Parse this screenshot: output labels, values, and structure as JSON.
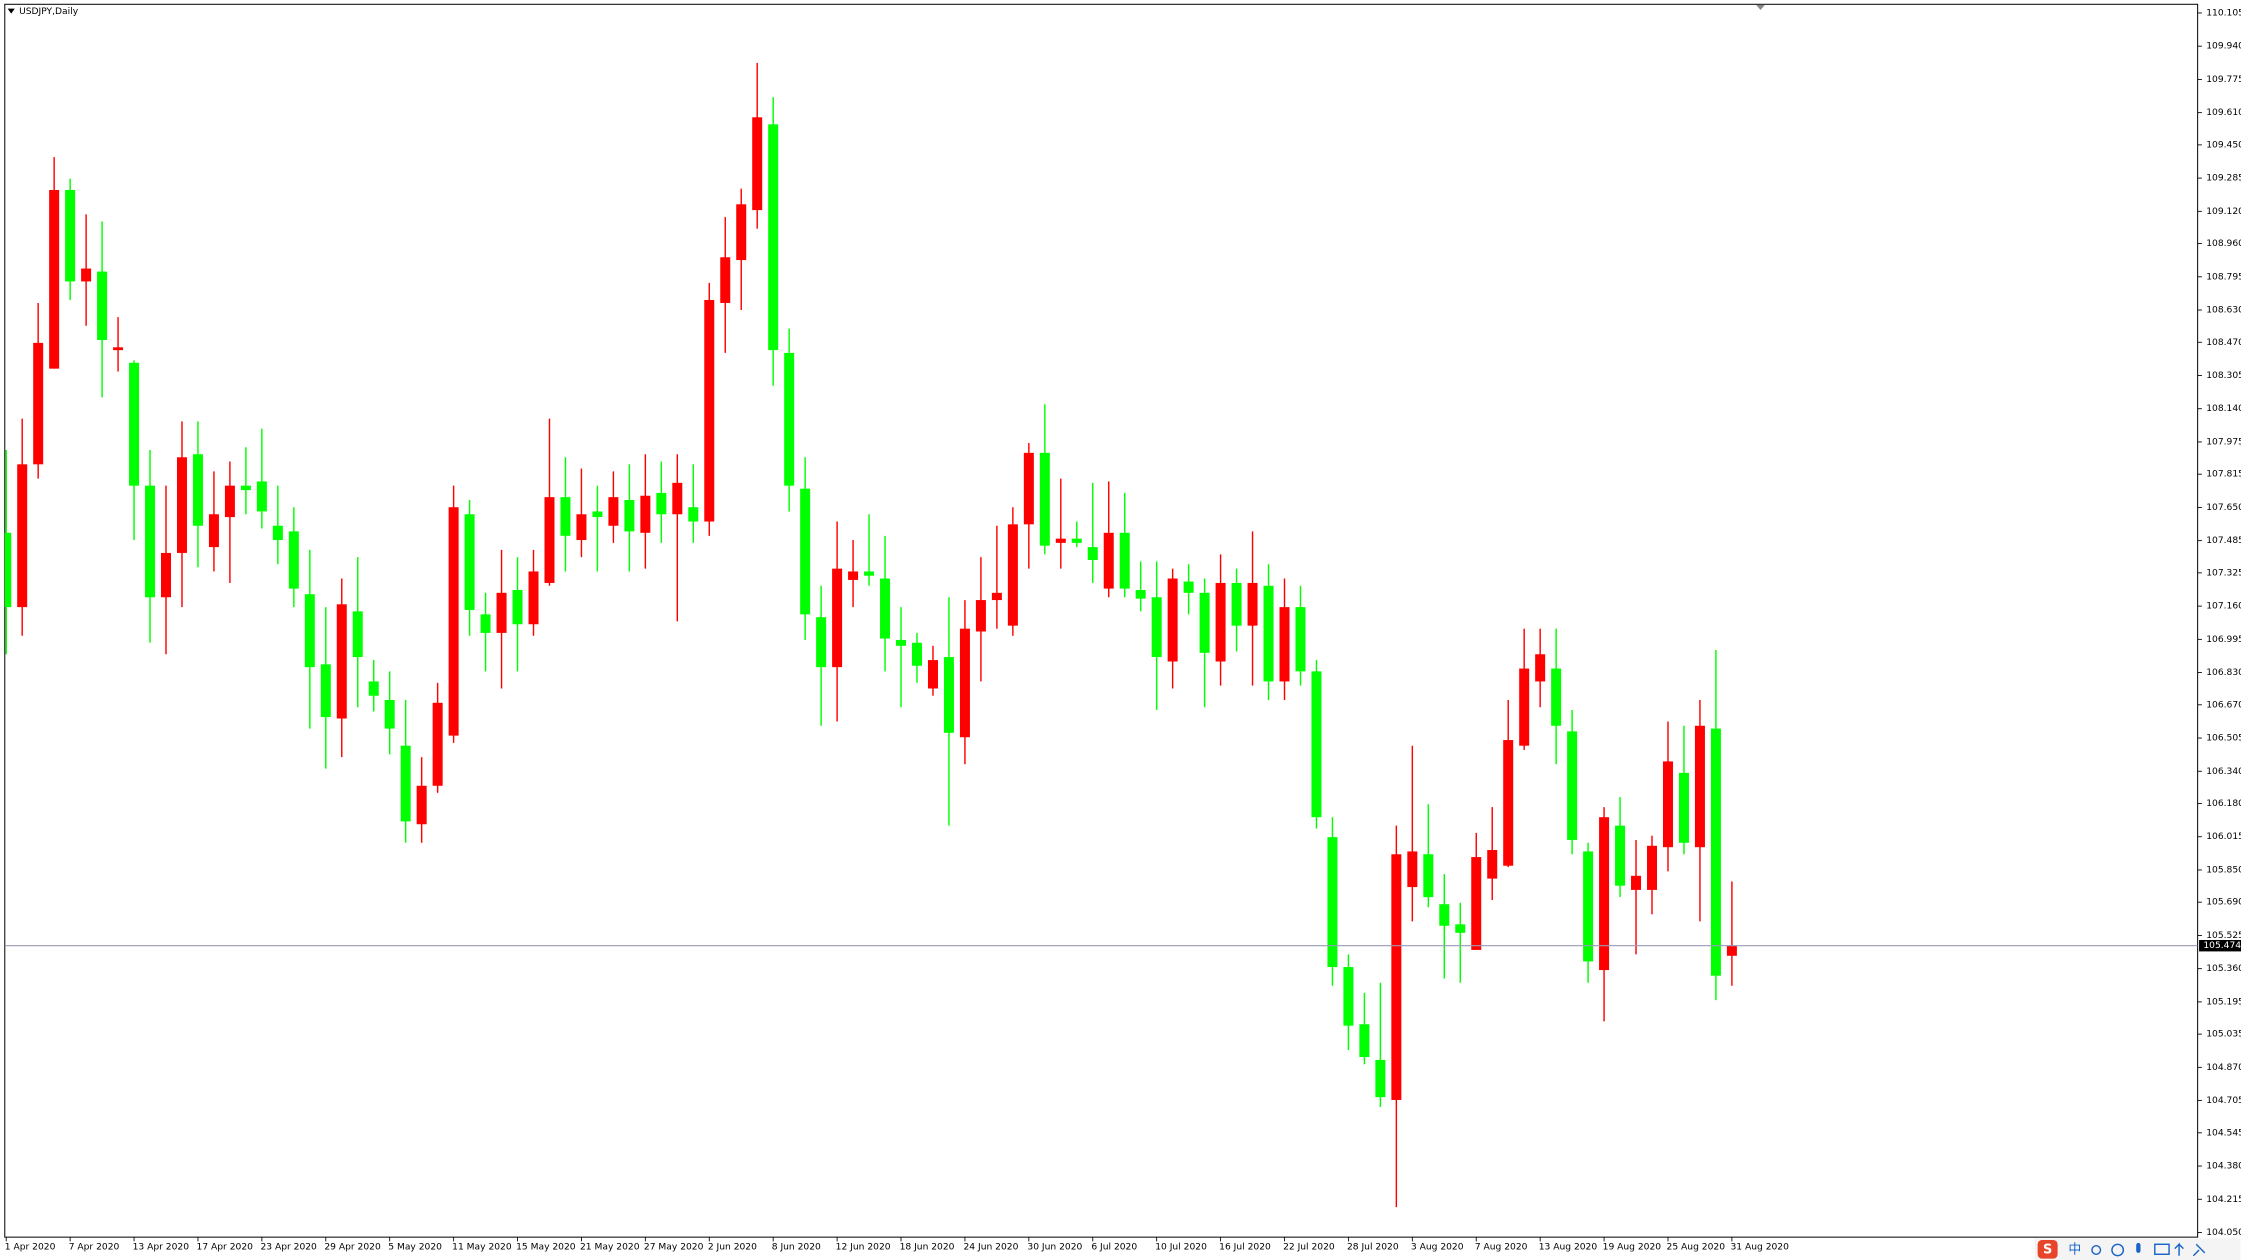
{
  "chart_data": {
    "type": "candlestick",
    "title": "USDJPY,Daily",
    "up_color": "#ff0000",
    "down_color": "#00ff00",
    "grid": false,
    "bid": 105.474,
    "bid_line_color": "#9a9ab8",
    "ylim": [
      104.027,
      110.148
    ],
    "yticks": [
      110.105,
      {
        "value": 109.94,
        "label": "109.940"
      },
      109.775,
      {
        "value": 109.61,
        "label": "109.610"
      },
      {
        "value": 109.45,
        "label": "109.450"
      },
      109.285,
      {
        "value": 109.12,
        "label": "109.120"
      },
      {
        "value": 108.96,
        "label": "108.960"
      },
      108.795,
      {
        "value": 108.63,
        "label": "108.630"
      },
      {
        "value": 108.47,
        "label": "108.470"
      },
      108.305,
      {
        "value": 108.14,
        "label": "108.140"
      },
      107.975,
      107.815,
      {
        "value": 107.65,
        "label": "107.650"
      },
      107.485,
      107.325,
      {
        "value": 107.16,
        "label": "107.160"
      },
      106.995,
      {
        "value": 106.83,
        "label": "106.830"
      },
      {
        "value": 106.67,
        "label": "106.670"
      },
      106.505,
      {
        "value": 106.34,
        "label": "106.340"
      },
      {
        "value": 106.18,
        "label": "106.180"
      },
      106.015,
      {
        "value": 105.85,
        "label": "105.850"
      },
      {
        "value": 105.69,
        "label": "105.690"
      },
      105.525,
      {
        "value": 105.36,
        "label": "105.360"
      },
      105.195,
      105.035,
      {
        "value": 104.87,
        "label": "104.870"
      },
      104.705,
      104.545,
      {
        "value": 104.38,
        "label": "104.380"
      },
      104.215,
      {
        "value": 104.05,
        "label": "104.050"
      }
    ],
    "categories": [
      "1 Apr 2020",
      null,
      null,
      null,
      "7 Apr 2020",
      null,
      null,
      null,
      "13 Apr 2020",
      null,
      null,
      null,
      "17 Apr 2020",
      null,
      null,
      null,
      "23 Apr 2020",
      null,
      null,
      null,
      "29 Apr 2020",
      null,
      null,
      null,
      "5 May 2020",
      null,
      null,
      null,
      "11 May 2020",
      null,
      null,
      null,
      "15 May 2020",
      null,
      null,
      null,
      "21 May 2020",
      null,
      null,
      null,
      "27 May 2020",
      null,
      null,
      null,
      "2 Jun 2020",
      null,
      null,
      null,
      "8 Jun 2020",
      null,
      null,
      null,
      "12 Jun 2020",
      null,
      null,
      null,
      "18 Jun 2020",
      null,
      null,
      null,
      "24 Jun 2020",
      null,
      null,
      null,
      "30 Jun 2020",
      null,
      null,
      null,
      "6 Jul 2020",
      null,
      null,
      null,
      "10 Jul 2020",
      null,
      null,
      null,
      "16 Jul 2020",
      null,
      null,
      null,
      "22 Jul 2020",
      null,
      null,
      null,
      "28 Jul 2020",
      null,
      null,
      null,
      "3 Aug 2020",
      null,
      null,
      null,
      "7 Aug 2020",
      null,
      null,
      null,
      "13 Aug 2020",
      null,
      null,
      null,
      "19 Aug 2020",
      null,
      null,
      null,
      "25 Aug 2020",
      null,
      null,
      null,
      "31 Aug 2020"
    ],
    "open": [
      107.524,
      107.155,
      107.864,
      108.339,
      109.226,
      108.772,
      108.821,
      108.431,
      108.368,
      107.758,
      107.204,
      107.424,
      107.914,
      107.453,
      107.602,
      107.758,
      107.779,
      107.559,
      107.531,
      107.219,
      106.871,
      106.602,
      107.134,
      106.786,
      106.694,
      106.467,
      106.077,
      106.268,
      106.517,
      107.616,
      107.119,
      107.027,
      107.24,
      107.07,
      107.275,
      107.701,
      107.488,
      107.63,
      107.559,
      107.687,
      107.524,
      107.722,
      107.616,
      107.651,
      107.58,
      108.665,
      108.878,
      109.126,
      109.552,
      108.417,
      107.743,
      107.105,
      106.857,
      107.29,
      107.332,
      107.297,
      106.992,
      106.978,
      106.751,
      106.907,
      106.509,
      107.034,
      107.19,
      107.063,
      107.566,
      107.921,
      107.474,
      107.495,
      107.453,
      107.247,
      107.524,
      107.24,
      107.204,
      106.885,
      107.282,
      107.226,
      106.885,
      107.275,
      107.063,
      107.261,
      106.786,
      107.155,
      106.836,
      106.013,
      105.368,
      105.084,
      104.907,
      104.708,
      105.765,
      105.928,
      105.68,
      105.58,
      105.453,
      105.807,
      105.871,
      106.467,
      106.786,
      106.85,
      106.538,
      105.942,
      105.353,
      106.07,
      105.751,
      105.751,
      105.963,
      106.332,
      105.963,
      106.552,
      105.424
    ],
    "high": [
      107.935,
      108.091,
      108.665,
      109.389,
      109.282,
      109.105,
      109.07,
      108.595,
      108.38,
      107.935,
      107.758,
      108.077,
      108.077,
      107.829,
      107.878,
      107.949,
      108.041,
      107.758,
      107.651,
      107.439,
      107.155,
      107.297,
      107.403,
      106.892,
      106.836,
      106.694,
      106.41,
      106.779,
      107.758,
      107.687,
      107.226,
      107.439,
      107.403,
      107.439,
      108.091,
      107.899,
      107.843,
      107.758,
      107.829,
      107.864,
      107.914,
      107.878,
      107.914,
      107.864,
      108.765,
      109.091,
      109.233,
      109.857,
      109.687,
      108.538,
      107.899,
      107.261,
      107.58,
      107.488,
      107.616,
      107.509,
      107.155,
      107.027,
      106.963,
      107.204,
      107.19,
      107.403,
      107.559,
      107.651,
      107.97,
      108.162,
      107.793,
      107.58,
      107.772,
      107.779,
      107.722,
      107.382,
      107.382,
      107.346,
      107.368,
      107.297,
      107.417,
      107.346,
      107.531,
      107.368,
      107.297,
      107.261,
      106.892,
      106.112,
      105.431,
      105.24,
      105.29,
      106.07,
      106.467,
      106.176,
      105.829,
      105.687,
      106.034,
      106.162,
      106.694,
      107.048,
      107.048,
      107.048,
      106.644,
      105.985,
      106.162,
      106.212,
      105.999,
      106.02,
      106.587,
      106.566,
      106.694,
      106.942,
      105.793
    ],
    "low": [
      106.921,
      107.013,
      107.793,
      108.339,
      108.68,
      108.552,
      108.197,
      108.325,
      107.488,
      106.978,
      106.921,
      107.155,
      107.353,
      107.332,
      107.275,
      107.616,
      107.545,
      107.368,
      107.155,
      106.552,
      106.353,
      106.41,
      106.658,
      106.637,
      106.424,
      105.985,
      105.985,
      106.233,
      106.481,
      107.013,
      106.836,
      106.751,
      106.836,
      107.013,
      107.261,
      107.332,
      107.403,
      107.332,
      107.474,
      107.332,
      107.346,
      107.474,
      107.084,
      107.474,
      107.509,
      108.417,
      108.63,
      109.034,
      108.254,
      107.63,
      106.992,
      106.566,
      106.587,
      107.155,
      107.261,
      106.836,
      106.658,
      106.779,
      106.715,
      106.07,
      106.375,
      106.786,
      107.048,
      107.013,
      107.346,
      107.417,
      107.346,
      107.453,
      107.275,
      107.204,
      107.204,
      107.134,
      106.644,
      106.751,
      107.119,
      106.658,
      106.765,
      106.935,
      106.765,
      106.694,
      106.694,
      106.765,
      106.056,
      105.275,
      104.956,
      104.885,
      104.673,
      104.176,
      105.595,
      105.665,
      105.311,
      105.29,
      105.453,
      105.701,
      105.864,
      106.446,
      106.658,
      106.375,
      105.928,
      105.29,
      105.098,
      105.715,
      105.431,
      105.63,
      105.843,
      105.928,
      105.595,
      105.204,
      105.275
    ],
    "close": [
      107.155,
      107.864,
      108.467,
      109.226,
      108.772,
      108.836,
      108.481,
      108.445,
      107.758,
      107.204,
      107.424,
      107.899,
      107.559,
      107.616,
      107.758,
      107.736,
      107.63,
      107.488,
      107.247,
      106.857,
      106.609,
      107.169,
      106.907,
      106.715,
      106.552,
      106.091,
      106.268,
      106.68,
      107.651,
      107.141,
      107.027,
      107.226,
      107.07,
      107.332,
      107.701,
      107.509,
      107.616,
      107.602,
      107.701,
      107.531,
      107.708,
      107.616,
      107.772,
      107.58,
      108.68,
      108.892,
      109.155,
      109.587,
      108.431,
      107.758,
      107.119,
      106.857,
      107.346,
      107.332,
      107.311,
      106.999,
      106.963,
      106.864,
      106.892,
      106.531,
      107.048,
      107.19,
      107.226,
      107.566,
      107.921,
      107.46,
      107.495,
      107.474,
      107.389,
      107.524,
      107.247,
      107.197,
      106.907,
      107.297,
      107.226,
      106.928,
      107.275,
      107.063,
      107.275,
      106.786,
      107.155,
      106.836,
      106.112,
      105.368,
      105.077,
      104.921,
      104.722,
      105.928,
      105.942,
      105.715,
      105.573,
      105.538,
      105.914,
      105.949,
      106.495,
      106.85,
      106.921,
      106.566,
      105.999,
      105.396,
      106.112,
      105.772,
      105.821,
      105.97,
      106.389,
      105.985,
      106.566,
      105.325,
      105.474
    ]
  },
  "ime_label": "中"
}
